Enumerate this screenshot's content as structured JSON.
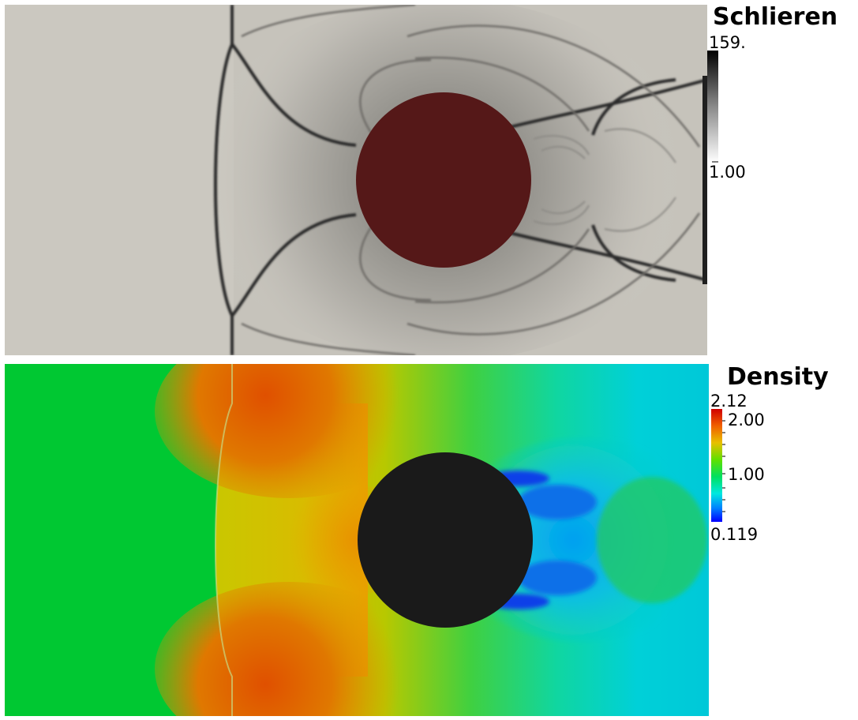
{
  "schlieren": {
    "title": "Schlieren",
    "max_label": "159.",
    "min_label": "1.00",
    "background_color": "#cbc8c0",
    "obstacle_color": "#551818"
  },
  "density": {
    "title": "Density",
    "max_label": "2.12",
    "tick_2": "2.00",
    "tick_1": "1.00",
    "min_label": "0.119",
    "freestream_color": "#00c832",
    "obstacle_color": "#1a1a1a"
  }
}
